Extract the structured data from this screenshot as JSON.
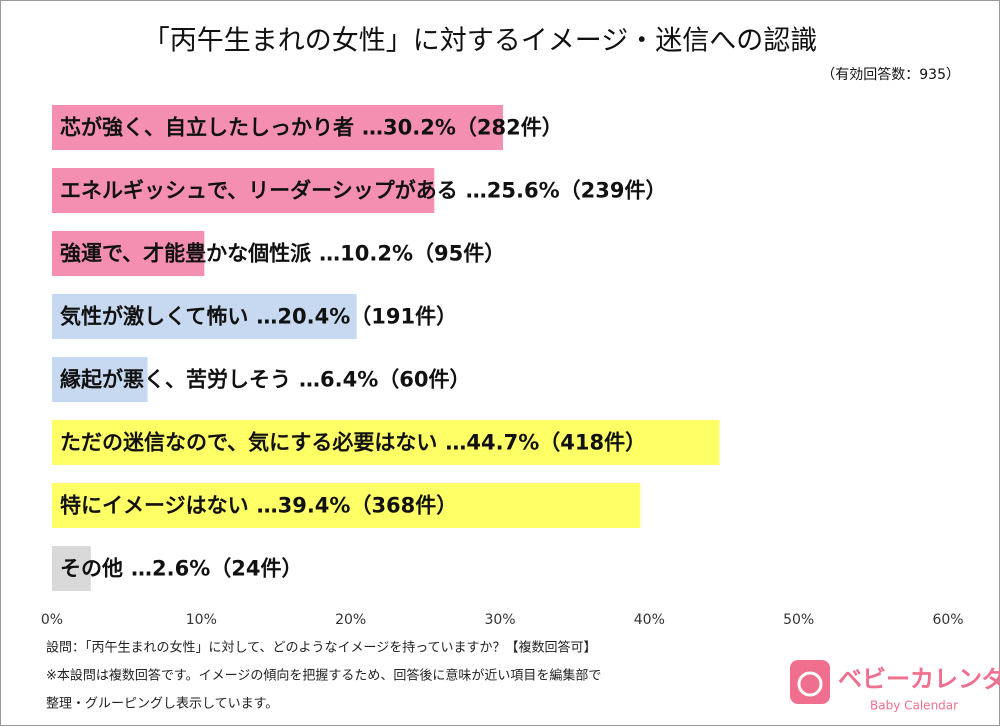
{
  "chart_data": {
    "type": "bar",
    "orientation": "horizontal",
    "title": "「丙午生まれの女性」に対するイメージ・迷信への認識",
    "subtitle": "（有効回答数：935）",
    "categories": [
      "芯が強く、自立したしっかり者",
      "エネルギッシュで、リーダーシップがある",
      "強運で、才能豊かな個性派",
      "気性が激しくて怖い",
      "縁起が悪く、苦労しそう",
      "ただの迷信なので、気にする必要はない",
      "特にイメージはない",
      "その他"
    ],
    "values": [
      30.2,
      25.6,
      10.2,
      20.4,
      6.4,
      44.7,
      39.4,
      2.6
    ],
    "value_labels": [
      "…30.2%（282件）",
      "…25.6%（239件）",
      "…10.2%（95件）",
      "…20.4%（191件）",
      "…6.4%（60件）",
      "…44.7%（418件）",
      "…39.4%（368件）",
      "…2.6%（24件）"
    ],
    "colors": [
      "#f48fb1",
      "#f48fb1",
      "#f48fb1",
      "#c6d9f0",
      "#c6d9f0",
      "#ffff66",
      "#ffff66",
      "#d9d9d9"
    ],
    "xlim": [
      0,
      60
    ],
    "xticks": [
      {
        "value": 0,
        "label": "0%"
      },
      {
        "value": 10,
        "label": "10%"
      },
      {
        "value": 20,
        "label": "20%"
      },
      {
        "value": 30,
        "label": "30%"
      },
      {
        "value": 40,
        "label": "40%"
      },
      {
        "value": 50,
        "label": "50%"
      },
      {
        "value": 60,
        "label": "60%"
      }
    ],
    "notes": [
      "設問：「丙午生まれの女性」に対して、どのようなイメージを持っていますか？【複数回答可】",
      "※本設問は複数回答です。イメージの傾向を把握するため、回答後に意味が近い項目を編集部で",
      "整理・グルーピングし表示しています。"
    ],
    "logo": {
      "name": "ベビーカレンダー",
      "sub": "Baby Calendar"
    }
  }
}
